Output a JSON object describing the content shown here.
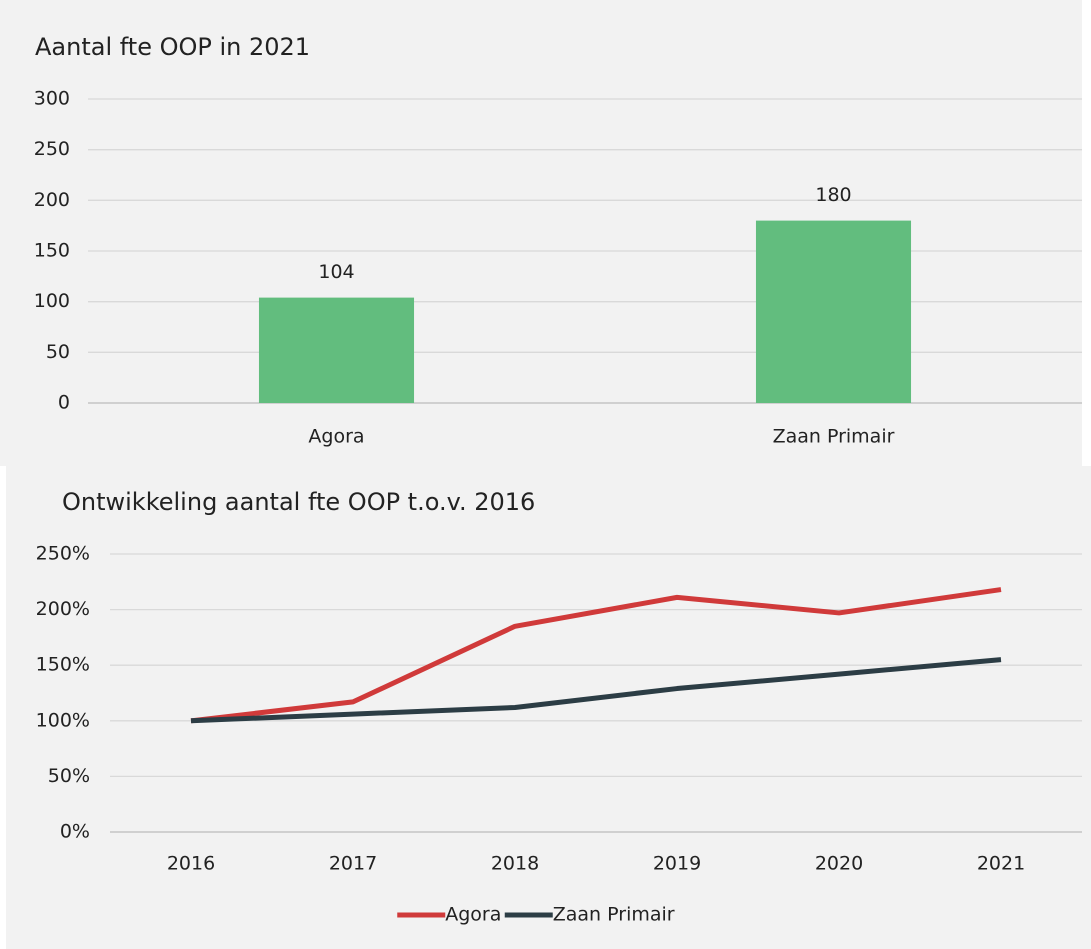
{
  "chart_data": [
    {
      "type": "bar",
      "title": "Aantal fte OOP in 2021",
      "categories": [
        "Agora",
        "Zaan Primair"
      ],
      "values": [
        104,
        180
      ],
      "color": "#62bd7e",
      "ylim": [
        0,
        300
      ],
      "yticks": [
        0,
        50,
        100,
        150,
        200,
        250,
        300
      ],
      "grid": true
    },
    {
      "type": "line",
      "title": "Ontwikkeling aantal fte OOP t.o.v. 2016",
      "categories": [
        "2016",
        "2017",
        "2018",
        "2019",
        "2020",
        "2021"
      ],
      "series": [
        {
          "name": "Agora",
          "color": "#d03a3a",
          "values": [
            100,
            117,
            185,
            211,
            197,
            218
          ]
        },
        {
          "name": "Zaan Primair",
          "color": "#2c3d45",
          "values": [
            100,
            106,
            112,
            129,
            142,
            155
          ]
        }
      ],
      "ylim": [
        0,
        250
      ],
      "yticks": [
        {
          "value": 0,
          "label": "0%"
        },
        {
          "value": 50,
          "label": "50%"
        },
        {
          "value": 100,
          "label": "100%"
        },
        {
          "value": 150,
          "label": "150%"
        },
        {
          "value": 200,
          "label": "200%"
        },
        {
          "value": 250,
          "label": "250%"
        }
      ],
      "grid": true,
      "legend": "bottom"
    }
  ]
}
